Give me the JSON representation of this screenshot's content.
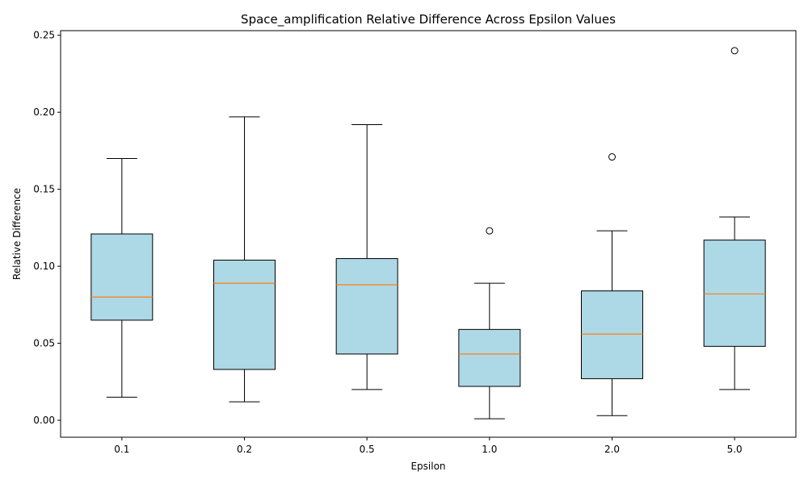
{
  "chart_data": {
    "type": "box",
    "title": "Space_amplification Relative Difference Across Epsilon Values",
    "xlabel": "Epsilon",
    "ylabel": "Relative Difference",
    "ylim": [
      -0.011,
      0.253
    ],
    "yticks": [
      "0.00",
      "0.05",
      "0.10",
      "0.15",
      "0.20",
      "0.25"
    ],
    "ytick_values": [
      0,
      0.05,
      0.1,
      0.15,
      0.2,
      0.25
    ],
    "grid": false,
    "box_color": "#add8e6",
    "median_color": "#ff7f0e",
    "categories": [
      "0.1",
      "0.2",
      "0.5",
      "1.0",
      "2.0",
      "5.0"
    ],
    "boxes": [
      {
        "whisker_low": 0.015,
        "q1": 0.065,
        "median": 0.08,
        "q3": 0.121,
        "whisker_high": 0.17,
        "outliers": []
      },
      {
        "whisker_low": 0.012,
        "q1": 0.033,
        "median": 0.089,
        "q3": 0.104,
        "whisker_high": 0.197,
        "outliers": []
      },
      {
        "whisker_low": 0.02,
        "q1": 0.043,
        "median": 0.088,
        "q3": 0.105,
        "whisker_high": 0.192,
        "outliers": []
      },
      {
        "whisker_low": 0.001,
        "q1": 0.022,
        "median": 0.043,
        "q3": 0.059,
        "whisker_high": 0.089,
        "outliers": [
          0.123
        ]
      },
      {
        "whisker_low": 0.003,
        "q1": 0.027,
        "median": 0.056,
        "q3": 0.084,
        "whisker_high": 0.123,
        "outliers": [
          0.171
        ]
      },
      {
        "whisker_low": 0.02,
        "q1": 0.048,
        "median": 0.082,
        "q3": 0.117,
        "whisker_high": 0.132,
        "outliers": [
          0.24
        ]
      }
    ]
  }
}
